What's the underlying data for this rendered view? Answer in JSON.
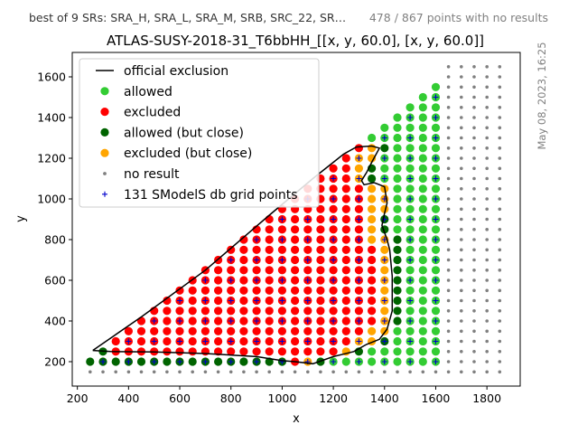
{
  "header": {
    "left_note": "best of 9 SRs: SRA_H, SRA_L, SRA_M, SRB, SRC_22, SR…",
    "right_note": "478 / 867 points with no results",
    "timestamp": "May 08, 2023, 16:25"
  },
  "chart_data": {
    "type": "scatter",
    "title": "ATLAS-SUSY-2018-31_T6bbHH_[[x, y, 60.0], [x, y, 60.0]]",
    "xlabel": "x",
    "ylabel": "y",
    "xlim": [
      180,
      1930
    ],
    "ylim": [
      80,
      1720
    ],
    "xticks": [
      200,
      400,
      600,
      800,
      1000,
      1200,
      1400,
      1600,
      1800
    ],
    "yticks": [
      200,
      400,
      600,
      800,
      1000,
      1200,
      1400,
      1600
    ],
    "grid": false,
    "legend_position": "top-left",
    "colors": {
      "allowed": "#33cc33",
      "excluded": "#ff0000",
      "allowed_close": "#006400",
      "excluded_close": "#ffa500",
      "no_result": "#808080",
      "grid_points": "#0000cc",
      "exclusion_line": "#000000"
    },
    "legend": [
      {
        "key": "official",
        "label": "official exclusion",
        "marker": "line"
      },
      {
        "key": "allowed",
        "label": "allowed",
        "marker": "dot"
      },
      {
        "key": "excluded",
        "label": "excluded",
        "marker": "dot"
      },
      {
        "key": "allowed_close",
        "label": "allowed (but close)",
        "marker": "dot"
      },
      {
        "key": "excluded_close",
        "label": "excluded (but close)",
        "marker": "dot"
      },
      {
        "key": "no_result",
        "label": "no result",
        "marker": "small"
      },
      {
        "key": "grid_points",
        "label": "131 SModelS db grid points",
        "marker": "plus"
      }
    ],
    "official_exclusion": [
      [
        260,
        255
      ],
      [
        330,
        250
      ],
      [
        500,
        248
      ],
      [
        700,
        240
      ],
      [
        900,
        225
      ],
      [
        1000,
        205
      ],
      [
        1050,
        200
      ],
      [
        1120,
        190
      ],
      [
        1200,
        225
      ],
      [
        1280,
        250
      ],
      [
        1330,
        285
      ],
      [
        1380,
        310
      ],
      [
        1410,
        360
      ],
      [
        1430,
        450
      ],
      [
        1430,
        620
      ],
      [
        1420,
        750
      ],
      [
        1410,
        800
      ],
      [
        1390,
        870
      ],
      [
        1400,
        930
      ],
      [
        1410,
        980
      ],
      [
        1400,
        1060
      ],
      [
        1360,
        1080
      ],
      [
        1320,
        1070
      ],
      [
        1310,
        1090
      ],
      [
        1330,
        1130
      ],
      [
        1350,
        1180
      ],
      [
        1380,
        1250
      ],
      [
        1350,
        1260
      ],
      [
        1290,
        1255
      ],
      [
        1240,
        1220
      ],
      [
        1120,
        1100
      ],
      [
        950,
        920
      ],
      [
        700,
        650
      ],
      [
        450,
        420
      ],
      [
        260,
        255
      ]
    ]
  }
}
